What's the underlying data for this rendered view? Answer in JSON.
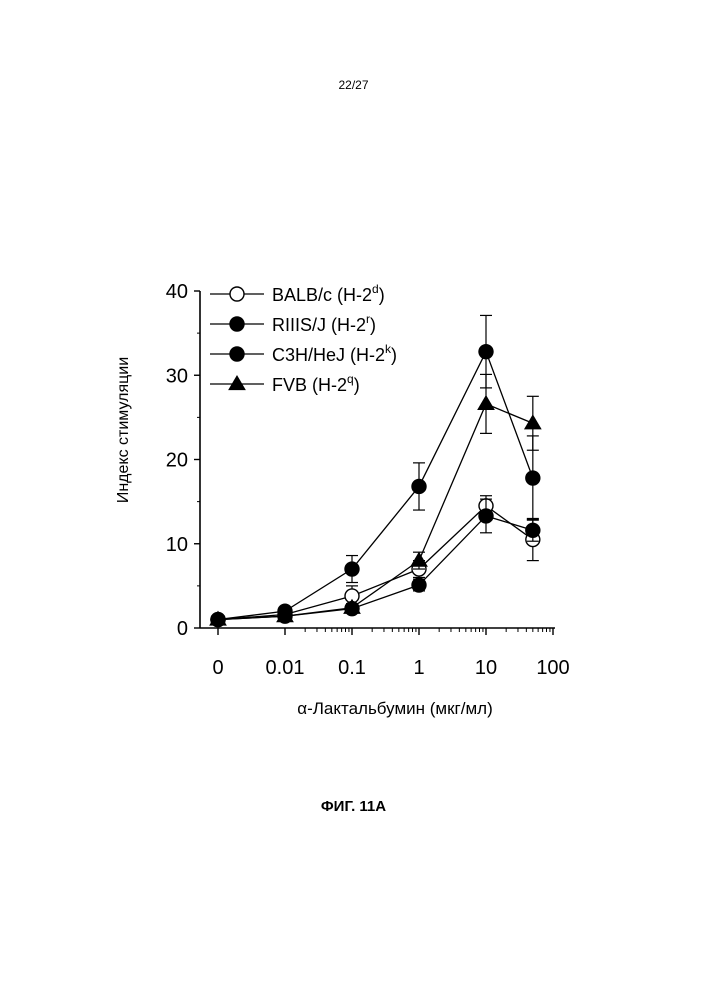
{
  "page": {
    "page_number": "22/27",
    "figure_caption": "ФИГ. 11A"
  },
  "chart_data": {
    "type": "line",
    "xlabel": "α-Лактальбумин (мкг/мл)",
    "ylabel": "Индекс стимуляции",
    "x_scale": "log",
    "x": [
      0,
      0.01,
      0.1,
      1,
      10,
      50
    ],
    "x_ticks": [
      "0",
      "0.01",
      "0.1",
      "1",
      "10",
      "100"
    ],
    "y_ticks": [
      "0",
      "10",
      "20",
      "30",
      "40"
    ],
    "ylim": [
      0,
      40
    ],
    "legend_position": "top-left",
    "series": [
      {
        "name": "BALB/c (H-2",
        "sup": "d",
        "suffix": ")",
        "marker": "open-circle",
        "values": [
          1.0,
          1.6,
          3.8,
          7.0,
          14.5,
          10.5
        ],
        "errors": [
          0.3,
          0.3,
          1.2,
          1.0,
          1.2,
          2.5
        ]
      },
      {
        "name": "RIIIS/J (H-2",
        "sup": "r",
        "suffix": ")",
        "marker": "filled-circle",
        "values": [
          1.0,
          2.0,
          7.0,
          16.8,
          32.8,
          17.8
        ],
        "errors": [
          0.3,
          0.3,
          1.6,
          2.8,
          4.3,
          5.0
        ]
      },
      {
        "name": "C3H/HeJ (H-2",
        "sup": "k",
        "suffix": ")",
        "marker": "filled-circle",
        "values": [
          1.0,
          1.4,
          2.3,
          5.1,
          13.3,
          11.6
        ],
        "errors": [
          0.3,
          0.3,
          0.5,
          0.7,
          2.0,
          1.3
        ]
      },
      {
        "name": "FVB (H-2",
        "sup": "q",
        "suffix": ")",
        "marker": "filled-triangle",
        "values": [
          1.0,
          1.4,
          2.4,
          8.0,
          26.6,
          24.3
        ],
        "errors": [
          0.3,
          0.3,
          0.5,
          1.0,
          3.5,
          3.2
        ]
      }
    ]
  }
}
